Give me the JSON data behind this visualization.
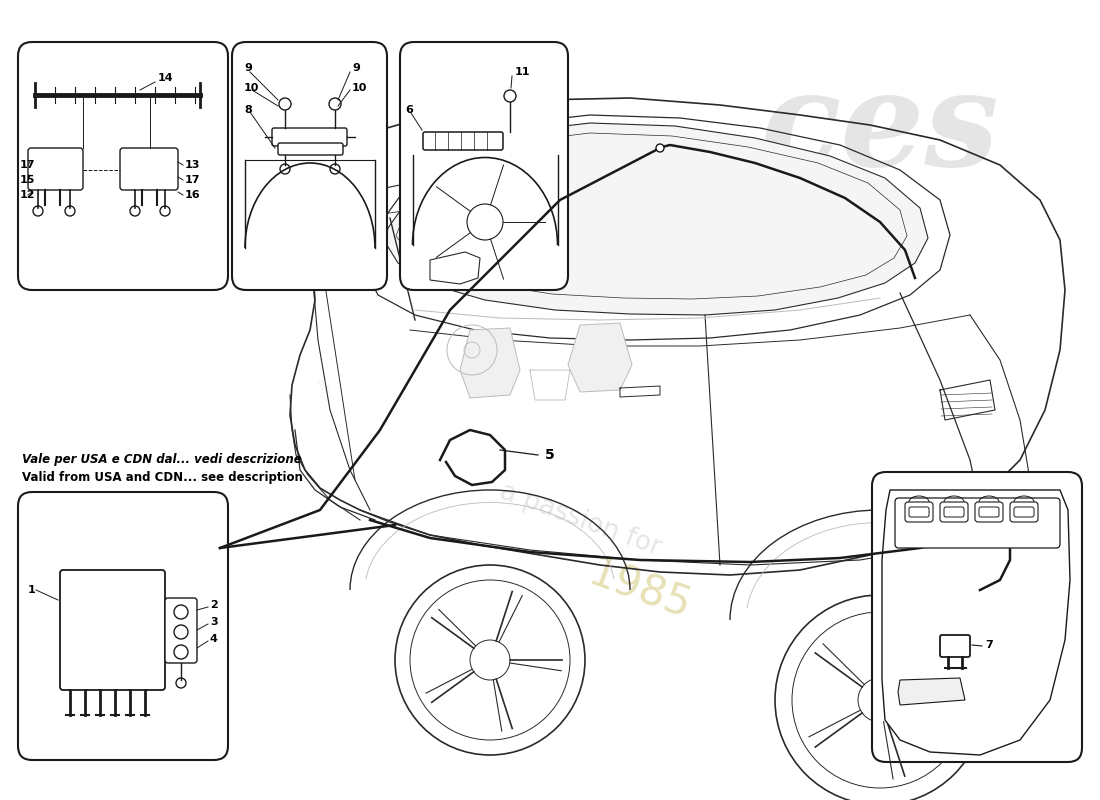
{
  "bg_color": "#ffffff",
  "line_color": "#1a1a1a",
  "light_line": "#888888",
  "very_light": "#bbbbbb",
  "note_line1": "Vale per USA e CDN dal... vedi descrizione",
  "note_line2": "Valid from USA and CDN... see description",
  "watermark_ces_color": "#d0d0d0",
  "watermark_passion_color": "#c8c8c8",
  "watermark_year_color": "#d4c87a",
  "watermark_ces_alpha": 0.55,
  "watermark_passion_alpha": 0.45,
  "watermark_year_alpha": 0.55
}
